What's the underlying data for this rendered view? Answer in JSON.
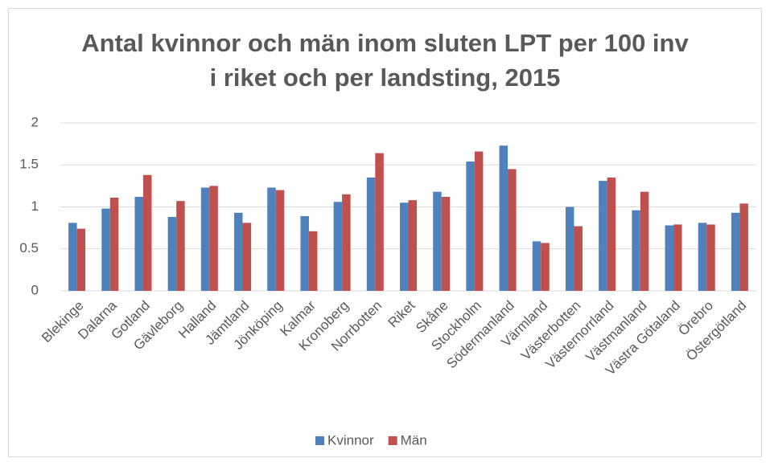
{
  "chart_data": {
    "type": "bar",
    "title": "Antal kvinnor och män inom sluten LPT per 100 inv i riket och per landsting, 2015",
    "categories": [
      "Blekinge",
      "Dalarna",
      "Gotland",
      "Gävleborg",
      "Halland",
      "Jämtland",
      "Jönköping",
      "Kalmar",
      "Kronoberg",
      "Norrbotten",
      "Riket",
      "Skåne",
      "Stockholm",
      "Södermanland",
      "Värmland",
      "Västerbotten",
      "Västernorrland",
      "Västmanland",
      "Västra Götaland",
      "Örebro",
      "Östergötland"
    ],
    "series": [
      {
        "name": "Kvinnor",
        "color": "#4f81bd",
        "values": [
          0.81,
          0.98,
          1.12,
          0.88,
          1.23,
          0.93,
          1.23,
          0.89,
          1.06,
          1.35,
          1.05,
          1.18,
          1.54,
          1.73,
          0.59,
          1.0,
          1.31,
          0.96,
          0.78,
          0.81,
          0.93
        ]
      },
      {
        "name": "Män",
        "color": "#c0504d",
        "values": [
          0.74,
          1.11,
          1.38,
          1.07,
          1.25,
          0.81,
          1.2,
          0.71,
          1.15,
          1.64,
          1.08,
          1.12,
          1.66,
          1.45,
          0.57,
          0.77,
          1.35,
          1.18,
          0.79,
          0.79,
          1.04
        ]
      }
    ],
    "ylim": [
      0,
      2
    ],
    "yticks": [
      0,
      0.5,
      1,
      1.5,
      2
    ],
    "grid": true,
    "legend": "bottom"
  }
}
